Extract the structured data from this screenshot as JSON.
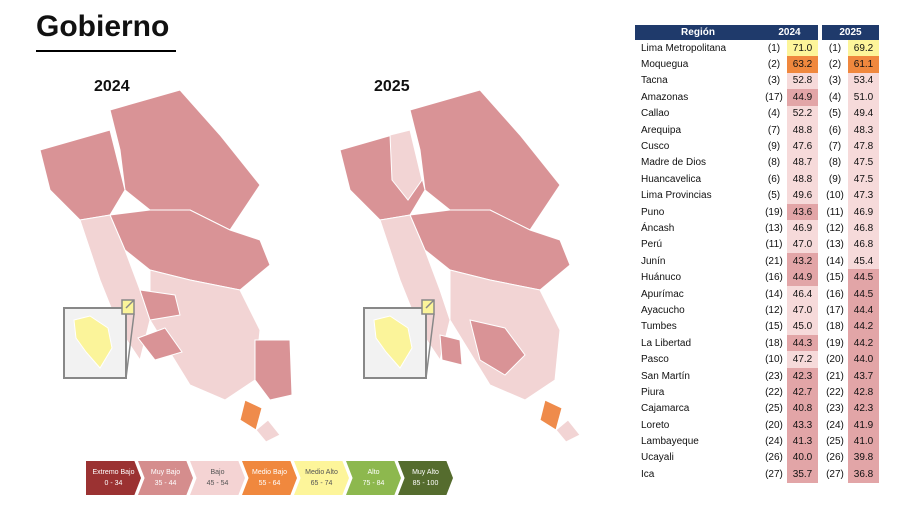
{
  "title": "Gobierno",
  "colors": {
    "dark": "#d99396",
    "light": "#f2d4d4",
    "lighter": "#f8e6e6",
    "orange": "#ef8b4b",
    "yellow": "#fbf49a",
    "border": "#ffffff"
  },
  "legend": [
    {
      "label": "Extremo Bajo",
      "range": "0 - 34",
      "color": "#9b3232"
    },
    {
      "label": "Muy Bajo",
      "range": "35 - 44",
      "color": "#d58d8d"
    },
    {
      "label": "Bajo",
      "range": "45 - 54",
      "color": "#f4d3d3"
    },
    {
      "label": "Medio Bajo",
      "range": "55 - 64",
      "color": "#f0883e"
    },
    {
      "label": "Medio Alto",
      "range": "65 - 74",
      "color": "#fdf59a"
    },
    {
      "label": "Alto",
      "range": "75 - 84",
      "color": "#8db84e"
    },
    {
      "label": "Muy Alto",
      "range": "85 - 100",
      "color": "#556c2e"
    }
  ],
  "chart_data": {
    "type": "table",
    "columns": [
      "Región",
      "2024",
      "2025"
    ],
    "rows": [
      {
        "region": "Lima Metropolitana",
        "r24": "(1)",
        "v24": "71.0",
        "r25": "(1)",
        "v25": "69.2"
      },
      {
        "region": "Moquegua",
        "r24": "(2)",
        "v24": "63.2",
        "r25": "(2)",
        "v25": "61.1"
      },
      {
        "region": "Tacna",
        "r24": "(3)",
        "v24": "52.8",
        "r25": "(3)",
        "v25": "53.4"
      },
      {
        "region": "Amazonas",
        "r24": "(17)",
        "v24": "44.9",
        "r25": "(4)",
        "v25": "51.0"
      },
      {
        "region": "Callao",
        "r24": "(4)",
        "v24": "52.2",
        "r25": "(5)",
        "v25": "49.4"
      },
      {
        "region": "Arequipa",
        "r24": "(7)",
        "v24": "48.8",
        "r25": "(6)",
        "v25": "48.3"
      },
      {
        "region": "Cusco",
        "r24": "(9)",
        "v24": "47.6",
        "r25": "(7)",
        "v25": "47.8"
      },
      {
        "region": "Madre de Dios",
        "r24": "(8)",
        "v24": "48.7",
        "r25": "(8)",
        "v25": "47.5"
      },
      {
        "region": "Huancavelica",
        "r24": "(6)",
        "v24": "48.8",
        "r25": "(9)",
        "v25": "47.5"
      },
      {
        "region": "Lima Provincias",
        "r24": "(5)",
        "v24": "49.6",
        "r25": "(10)",
        "v25": "47.3"
      },
      {
        "region": "Puno",
        "r24": "(19)",
        "v24": "43.6",
        "r25": "(11)",
        "v25": "46.9"
      },
      {
        "region": "Áncash",
        "r24": "(13)",
        "v24": "46.9",
        "r25": "(12)",
        "v25": "46.8"
      },
      {
        "region": "Perú",
        "r24": "(11)",
        "v24": "47.0",
        "r25": "(13)",
        "v25": "46.8"
      },
      {
        "region": "Junín",
        "r24": "(21)",
        "v24": "43.2",
        "r25": "(14)",
        "v25": "45.4"
      },
      {
        "region": "Huánuco",
        "r24": "(16)",
        "v24": "44.9",
        "r25": "(15)",
        "v25": "44.5"
      },
      {
        "region": "Apurímac",
        "r24": "(14)",
        "v24": "46.4",
        "r25": "(16)",
        "v25": "44.5"
      },
      {
        "region": "Ayacucho",
        "r24": "(12)",
        "v24": "47.0",
        "r25": "(17)",
        "v25": "44.4"
      },
      {
        "region": "Tumbes",
        "r24": "(15)",
        "v24": "45.0",
        "r25": "(18)",
        "v25": "44.2"
      },
      {
        "region": "La Libertad",
        "r24": "(18)",
        "v24": "44.3",
        "r25": "(19)",
        "v25": "44.2"
      },
      {
        "region": "Pasco",
        "r24": "(10)",
        "v24": "47.2",
        "r25": "(20)",
        "v25": "44.0"
      },
      {
        "region": "San Martín",
        "r24": "(23)",
        "v24": "42.3",
        "r25": "(21)",
        "v25": "43.7"
      },
      {
        "region": "Piura",
        "r24": "(22)",
        "v24": "42.7",
        "r25": "(22)",
        "v25": "42.8"
      },
      {
        "region": "Cajamarca",
        "r24": "(25)",
        "v24": "40.8",
        "r25": "(23)",
        "v25": "42.3"
      },
      {
        "region": "Loreto",
        "r24": "(20)",
        "v24": "43.3",
        "r25": "(24)",
        "v25": "41.9"
      },
      {
        "region": "Lambayeque",
        "r24": "(24)",
        "v24": "41.3",
        "r25": "(25)",
        "v25": "41.0"
      },
      {
        "region": "Ucayali",
        "r24": "(26)",
        "v24": "40.0",
        "r25": "(26)",
        "v25": "39.8"
      },
      {
        "region": "Ica",
        "r24": "(27)",
        "v24": "35.7",
        "r25": "(27)",
        "v25": "36.8"
      }
    ]
  },
  "maps": [
    {
      "year": "2024",
      "west": "#d99396",
      "south": "#d99396",
      "lima": "#d99396",
      "inset": "#fbf49a"
    },
    {
      "year": "2025",
      "west": "#f2d4d4",
      "south": "#f2d4d4",
      "lima": "#f2d4d4",
      "inset": "#fbf49a"
    }
  ]
}
